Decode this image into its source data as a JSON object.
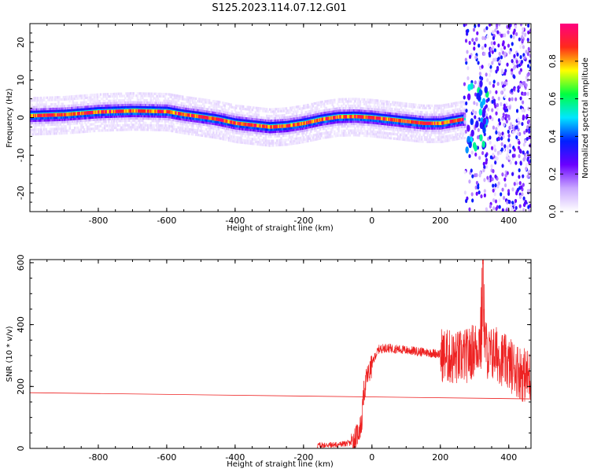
{
  "title": "S125.2023.114.07.12.G01",
  "colors": {
    "spectrum_stops": [
      "#ffffff",
      "#c9a7ff",
      "#6a00ff",
      "#0020ff",
      "#00e6ff",
      "#00ff40",
      "#ffff00",
      "#ff2a1a",
      "#ff007f"
    ],
    "snr_line": "#ee2222"
  },
  "chart_data": [
    {
      "type": "heatmap",
      "xlabel": "Height of straight line (km)",
      "ylabel": "Frequency (Hz)",
      "xlim": [
        -1000,
        465
      ],
      "ylim": [
        -25,
        25
      ],
      "x_ticks": [
        -800,
        -600,
        -400,
        -200,
        0,
        200,
        400
      ],
      "x_tick_labels": [
        "-800",
        "-600",
        "-400",
        "-200",
        "0",
        "200",
        "400"
      ],
      "y_ticks": [
        20,
        10,
        0,
        -10,
        -20
      ],
      "y_tick_labels": [
        "20",
        "10",
        "0",
        "-10",
        "-20"
      ],
      "colorbar": {
        "label": "Normalized spectral amplitude",
        "range": [
          0,
          1
        ],
        "ticks": [
          0.0,
          0.2,
          0.4,
          0.6,
          0.8
        ],
        "tick_labels": [
          "0.0",
          "0.2",
          "0.4",
          "0.6",
          "0.8"
        ]
      },
      "carrier_track": {
        "x": [
          -1000,
          -900,
          -800,
          -700,
          -600,
          -550,
          -500,
          -450,
          -400,
          -350,
          -300,
          -250,
          -200,
          -150,
          -100,
          -50,
          0,
          50,
          100,
          150,
          200,
          230,
          260
        ],
        "frequency": [
          0.5,
          0.8,
          1.5,
          1.8,
          1.6,
          0.8,
          0.2,
          -0.5,
          -1.5,
          -2.0,
          -2.5,
          -2.2,
          -1.5,
          -0.5,
          0.2,
          0.3,
          0.0,
          -0.5,
          -1.0,
          -1.5,
          -1.5,
          -1.0,
          -0.5
        ]
      },
      "grid": false
    },
    {
      "type": "line",
      "xlabel": "Height of straight line (km)",
      "ylabel": "SNR (10 * v/v)",
      "xlim": [
        -1000,
        465
      ],
      "ylim": [
        0,
        610
      ],
      "x_ticks": [
        -800,
        -600,
        -400,
        -200,
        0,
        200,
        400
      ],
      "x_tick_labels": [
        "-800",
        "-600",
        "-400",
        "-200",
        "0",
        "200",
        "400"
      ],
      "y_ticks": [
        0,
        200,
        400,
        600
      ],
      "y_tick_labels": [
        "0",
        "200",
        "400",
        "600"
      ],
      "series": [
        {
          "x": [
            -160,
            -100,
            -60,
            -45,
            -30,
            -25,
            -15,
            -5,
            0,
            10,
            20,
            40,
            80,
            120,
            160,
            200,
            240,
            280,
            310,
            320,
            325,
            330,
            340,
            360,
            380,
            400,
            420,
            440,
            465
          ],
          "values": [
            10,
            12,
            18,
            40,
            80,
            170,
            230,
            250,
            270,
            300,
            320,
            325,
            320,
            315,
            310,
            305,
            290,
            300,
            330,
            380,
            600,
            350,
            300,
            310,
            290,
            270,
            260,
            240,
            230
          ]
        },
        {
          "x": [
            -1000,
            465
          ],
          "values": [
            180,
            160
          ]
        }
      ],
      "grid": false
    }
  ]
}
